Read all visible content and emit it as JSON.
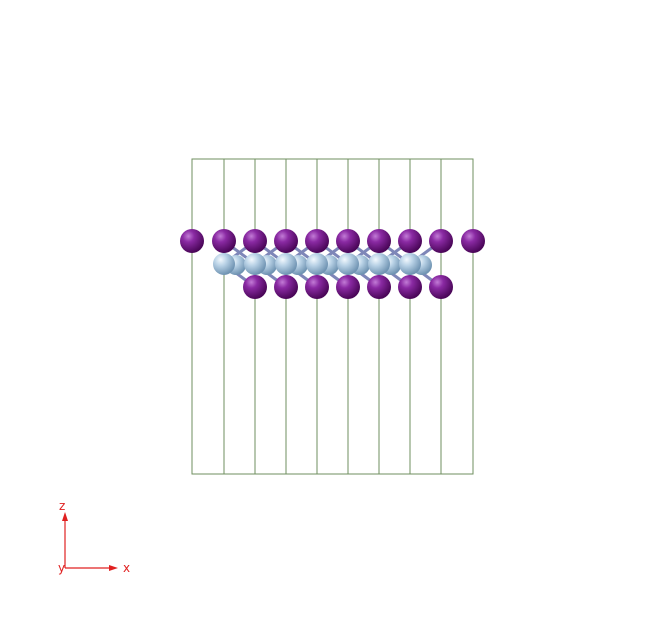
{
  "viewer": {
    "background_color": "#ffffff",
    "cell_line_color": "#6f8f5f",
    "atom_colors": {
      "iodine": "#6a0f7e",
      "metal": "#a9c7df",
      "bond": "#7e86b8"
    }
  },
  "axes": {
    "color": "#e02020",
    "labels": {
      "z": "z",
      "x": "x",
      "y": "y"
    }
  }
}
